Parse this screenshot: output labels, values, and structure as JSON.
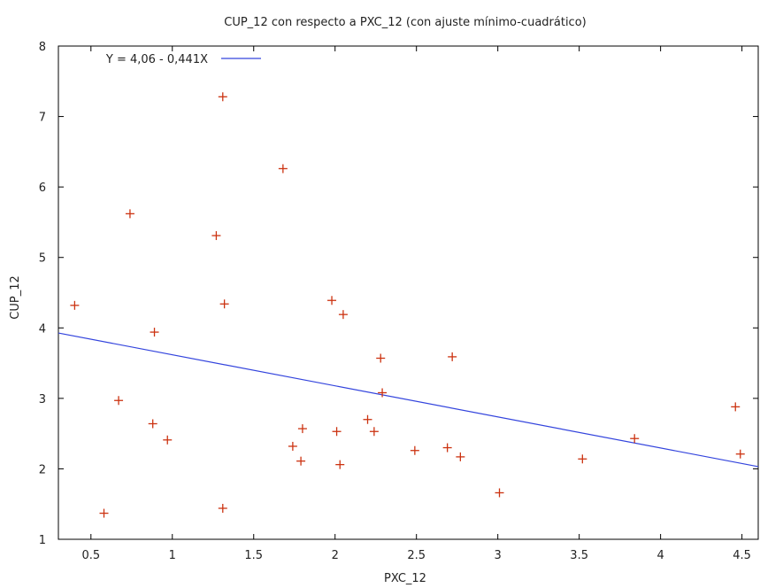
{
  "chart_data": {
    "type": "scatter",
    "title": "CUP_12 con respecto a PXC_12 (con ajuste mínimo-cuadrático)",
    "xlabel": "PXC_12",
    "ylabel": "CUP_12",
    "xlim": [
      0.3,
      4.6
    ],
    "ylim": [
      1,
      8
    ],
    "x_ticks": [
      0.5,
      1,
      1.5,
      2,
      2.5,
      3,
      3.5,
      4,
      4.5
    ],
    "x_tick_labels": [
      "0.5",
      "1",
      "1.5",
      "2",
      "2.5",
      "3",
      "3.5",
      "4",
      "4.5"
    ],
    "y_ticks": [
      1,
      2,
      3,
      4,
      5,
      6,
      7,
      8
    ],
    "y_tick_labels": [
      "1",
      "2",
      "3",
      "4",
      "5",
      "6",
      "7",
      "8"
    ],
    "grid": false,
    "legend_position": "top-left",
    "legend_label": "Y = 4,06 - 0,441X",
    "point_color": "#cc3311",
    "line_color": "#3344dd",
    "fit_line": {
      "intercept": 4.06,
      "slope": -0.441
    },
    "points": [
      {
        "x": 0.4,
        "y": 4.32
      },
      {
        "x": 0.58,
        "y": 1.37
      },
      {
        "x": 0.67,
        "y": 2.97
      },
      {
        "x": 0.74,
        "y": 5.62
      },
      {
        "x": 0.88,
        "y": 2.64
      },
      {
        "x": 0.89,
        "y": 3.94
      },
      {
        "x": 0.97,
        "y": 2.41
      },
      {
        "x": 1.27,
        "y": 5.31
      },
      {
        "x": 1.31,
        "y": 7.28
      },
      {
        "x": 1.32,
        "y": 4.34
      },
      {
        "x": 1.31,
        "y": 1.44
      },
      {
        "x": 1.68,
        "y": 6.26
      },
      {
        "x": 1.74,
        "y": 2.32
      },
      {
        "x": 1.79,
        "y": 2.11
      },
      {
        "x": 1.8,
        "y": 2.57
      },
      {
        "x": 1.98,
        "y": 4.39
      },
      {
        "x": 2.01,
        "y": 2.53
      },
      {
        "x": 2.03,
        "y": 2.06
      },
      {
        "x": 2.05,
        "y": 4.19
      },
      {
        "x": 2.2,
        "y": 2.7
      },
      {
        "x": 2.24,
        "y": 2.53
      },
      {
        "x": 2.28,
        "y": 3.57
      },
      {
        "x": 2.29,
        "y": 3.08
      },
      {
        "x": 2.49,
        "y": 2.26
      },
      {
        "x": 2.69,
        "y": 2.3
      },
      {
        "x": 2.72,
        "y": 3.59
      },
      {
        "x": 2.77,
        "y": 2.17
      },
      {
        "x": 3.01,
        "y": 1.66
      },
      {
        "x": 3.52,
        "y": 2.14
      },
      {
        "x": 3.84,
        "y": 2.43
      },
      {
        "x": 4.46,
        "y": 2.88
      },
      {
        "x": 4.49,
        "y": 2.21
      }
    ]
  }
}
